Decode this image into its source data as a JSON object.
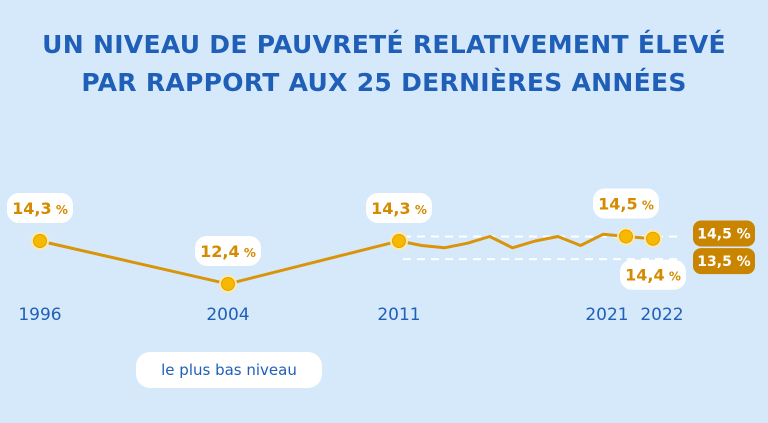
{
  "title_line1": "UN NIVEAU DE PAUVRETÉ RELATIVEMENT ÉLEVÉ",
  "title_line2": "PAR RAPPORT AUX 25 DERNIÈRES ANNÉES",
  "note": "le plus bas niveau",
  "colors": {
    "line": "#d9940a",
    "point": "#f6b800",
    "accent": "#c98400",
    "title": "#1f5fb8",
    "background": "#d6e9fb"
  },
  "chart_data": {
    "type": "line",
    "x": [
      1996,
      2004,
      2011,
      2012,
      2013,
      2014,
      2015,
      2016,
      2017,
      2018,
      2019,
      2020,
      2021,
      2022
    ],
    "y": [
      14.3,
      12.4,
      14.3,
      14.1,
      14.0,
      14.2,
      14.5,
      14.0,
      14.3,
      14.5,
      14.1,
      14.6,
      14.5,
      14.4
    ],
    "labeled_points": [
      {
        "x": 1996,
        "label": "14,3 %",
        "position": "above"
      },
      {
        "x": 2004,
        "label": "12,4 %",
        "position": "above"
      },
      {
        "x": 2011,
        "label": "14,3 %",
        "position": "above"
      },
      {
        "x": 2021,
        "label": "14,5 %",
        "position": "above"
      },
      {
        "x": 2022,
        "label": "14,4 %",
        "position": "below"
      }
    ],
    "x_tick_labels": [
      "1996",
      "2004",
      "2011",
      "2021",
      "2022"
    ],
    "reference_band": {
      "upper": 14.5,
      "lower": 13.5,
      "upper_label": "14,5 %",
      "lower_label": "13,5 %",
      "from_x": 2011
    },
    "grid": false
  }
}
